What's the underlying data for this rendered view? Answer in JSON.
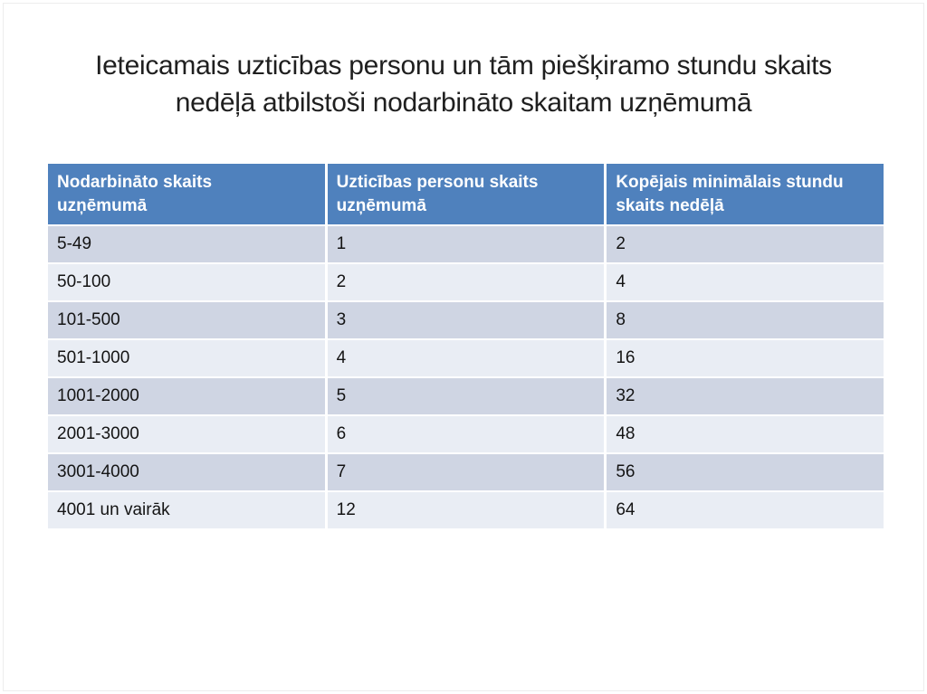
{
  "theme": {
    "colors": {
      "header-bg": "#4F81BD",
      "header-text": "#FFFFFF",
      "band1": "#CFD5E3",
      "band2": "#E9EDF4",
      "body-text": "#141414",
      "title-text": "#1F1F1F",
      "slide-bg": "#FFFFFF",
      "slide-border": "#EDEDED"
    }
  },
  "title": {
    "line1": "Ieteicamais uzticības personu un tām piešķiramo stundu skaits",
    "line2": "nedēļā atbilstoši nodarbināto skaitam uzņēmumā"
  },
  "table": {
    "columns": [
      "Nodarbināto skaits uzņēmumā",
      "Uzticības personu skaits uzņēmumā",
      "Kopējais minimālais stundu skaits nedēļā"
    ],
    "rows": [
      [
        "5-49",
        "1",
        "2"
      ],
      [
        "50-100",
        "2",
        "4"
      ],
      [
        "101-500",
        "3",
        "8"
      ],
      [
        "501-1000",
        "4",
        "16"
      ],
      [
        "1001-2000",
        "5",
        "32"
      ],
      [
        "2001-3000",
        "6",
        "48"
      ],
      [
        "3001-4000",
        "7",
        "56"
      ],
      [
        "4001 un vairāk",
        "12",
        "64"
      ]
    ]
  }
}
